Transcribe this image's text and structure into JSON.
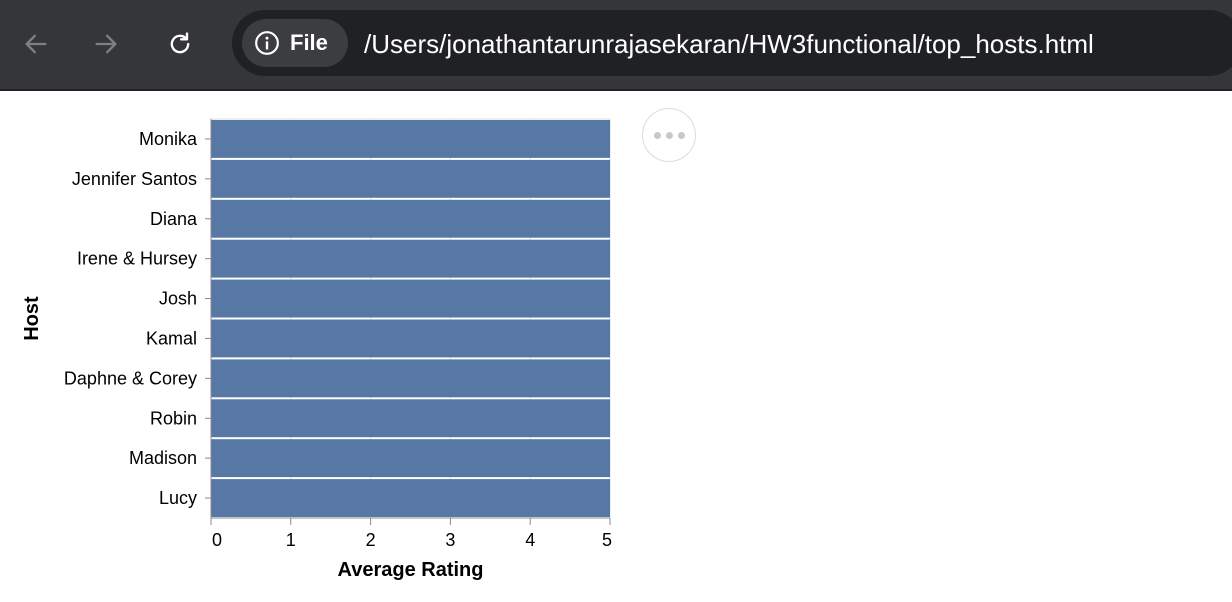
{
  "browser": {
    "file_chip_label": "File",
    "url": "/Users/jonathantarunrajasekaran/HW3functional/top_hosts.html",
    "icons": {
      "back": "arrow-left-icon",
      "forward": "arrow-right-icon",
      "reload": "reload-icon",
      "info": "info-icon",
      "more": "ellipsis-icon"
    },
    "colors": {
      "toolbar": "#35363a",
      "omnibox": "#202124",
      "chip": "#3c3d41"
    }
  },
  "chart_data": {
    "type": "bar",
    "orientation": "horizontal",
    "categories": [
      "Monika",
      "Jennifer Santos",
      "Diana",
      "Irene & Hursey",
      "Josh",
      "Kamal",
      "Daphne & Corey",
      "Robin",
      "Madison",
      "Lucy"
    ],
    "values": [
      5,
      5,
      5,
      5,
      5,
      5,
      5,
      5,
      5,
      5
    ],
    "xlabel": "Average Rating",
    "ylabel": "Host",
    "xlim": [
      0,
      5
    ],
    "xticks": [
      "0",
      "1",
      "2",
      "3",
      "4",
      "5"
    ],
    "grid": true,
    "bar_color": "#5778a4"
  }
}
